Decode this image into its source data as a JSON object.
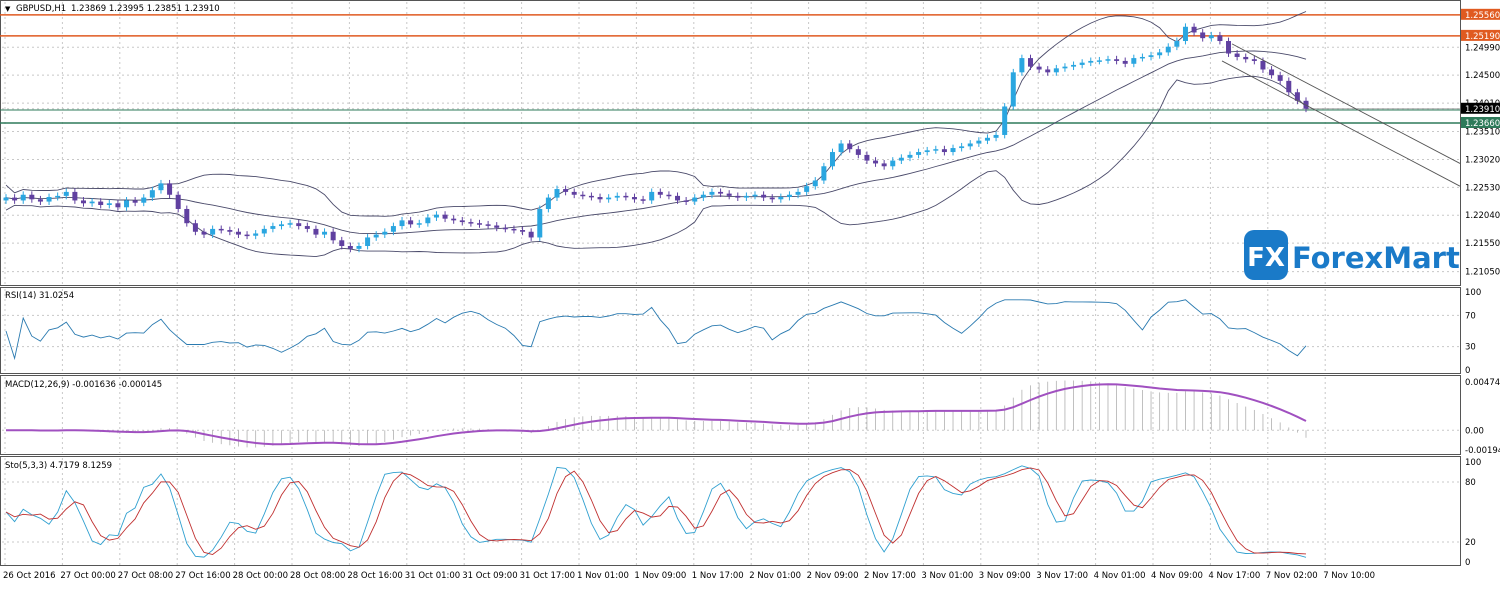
{
  "window": {
    "title": "GBPUSD,H1",
    "ohlc": "1.23869 1.23995 1.23851 1.23910"
  },
  "logo": {
    "text": "ForexMart",
    "mark": "FX"
  },
  "colors": {
    "bull": "#1e90ff",
    "bear": "#5a4aa0",
    "candle_up": "#2aa6e0",
    "candle_down": "#6040a0",
    "band": "#4a4a6a",
    "resistance": "#e05a20",
    "support": "#2e7a5a",
    "rsi": "#2a7ab0",
    "macd": "#a050c0",
    "sto_main": "#30a0d0",
    "sto_signal": "#c03030",
    "grid": "#c8c8c8"
  },
  "chart_data": [
    {
      "type": "candlestick",
      "pane": "price",
      "title": "GBPUSD,H1",
      "ylim": [
        1.2085,
        1.2575
      ],
      "y_ticks": [
        "1.25560",
        "1.25190",
        "1.24990",
        "1.24500",
        "1.24010",
        "1.23910",
        "1.23660",
        "1.23510",
        "1.23020",
        "1.22530",
        "1.22040",
        "1.21550",
        "1.21050"
      ],
      "levels": [
        {
          "name": "resistance-high",
          "value": 1.2556,
          "label": "1.25560"
        },
        {
          "name": "resistance-low",
          "value": 1.2519,
          "label": "1.25190"
        },
        {
          "name": "support",
          "value": 1.2366,
          "label": "1.23660"
        }
      ],
      "current_price": {
        "value": 1.2391,
        "label": "1.23910"
      },
      "closes": [
        1.2235,
        1.223,
        1.224,
        1.2232,
        1.2228,
        1.2236,
        1.2238,
        1.2245,
        1.223,
        1.2225,
        1.2228,
        1.2222,
        1.2225,
        1.2218,
        1.223,
        1.2226,
        1.2235,
        1.2248,
        1.226,
        1.224,
        1.2215,
        1.219,
        1.2175,
        1.217,
        1.218,
        1.2178,
        1.2175,
        1.217,
        1.2168,
        1.2172,
        1.218,
        1.2185,
        1.2188,
        1.219,
        1.2185,
        1.218,
        1.217,
        1.2175,
        1.216,
        1.215,
        1.2145,
        1.215,
        1.2165,
        1.217,
        1.2175,
        1.2185,
        1.2195,
        1.2188,
        1.219,
        1.22,
        1.2205,
        1.2198,
        1.2195,
        1.2192,
        1.219,
        1.2188,
        1.2186,
        1.2182,
        1.218,
        1.2178,
        1.2175,
        1.2165,
        1.2215,
        1.2235,
        1.225,
        1.2245,
        1.224,
        1.2238,
        1.2236,
        1.2232,
        1.2235,
        1.2238,
        1.2236,
        1.2232,
        1.223,
        1.2245,
        1.224,
        1.2238,
        1.223,
        1.2228,
        1.2235,
        1.224,
        1.2245,
        1.2242,
        1.2238,
        1.2235,
        1.2238,
        1.224,
        1.2235,
        1.2232,
        1.2236,
        1.224,
        1.2245,
        1.2255,
        1.2265,
        1.229,
        1.2315,
        1.233,
        1.232,
        1.231,
        1.23,
        1.2295,
        1.229,
        1.23,
        1.2305,
        1.231,
        1.2315,
        1.2318,
        1.232,
        1.2315,
        1.2322,
        1.2325,
        1.233,
        1.2335,
        1.234,
        1.2345,
        1.2395,
        1.2455,
        1.248,
        1.2465,
        1.246,
        1.2455,
        1.2462,
        1.2465,
        1.2468,
        1.2472,
        1.2475,
        1.2476,
        1.2478,
        1.2475,
        1.247,
        1.248,
        1.2482,
        1.2485,
        1.249,
        1.25,
        1.251,
        1.2535,
        1.2525,
        1.2515,
        1.252,
        1.251,
        1.2488,
        1.2482,
        1.2478,
        1.2475,
        1.246,
        1.245,
        1.244,
        1.242,
        1.2405,
        1.2391
      ]
    },
    {
      "type": "line",
      "pane": "rsi",
      "title": "RSI(14) 31.0254",
      "ylim": [
        0,
        100
      ],
      "y_ticks": [
        "100",
        "70",
        "30",
        "0"
      ]
    },
    {
      "type": "line",
      "pane": "macd",
      "title": "MACD(12,26,9) -0.001636 -0.000145",
      "y_ticks": [
        "0.004745",
        "0.00",
        "-0.00194"
      ]
    },
    {
      "type": "line",
      "pane": "stochastic",
      "title": "Sto(5,3,3) 4.7179 8.1259",
      "ylim": [
        0,
        100
      ],
      "y_ticks": [
        "100",
        "80",
        "20",
        "0"
      ]
    }
  ],
  "x_ticks": [
    "26 Oct 2016",
    "27 Oct 00:00",
    "27 Oct 08:00",
    "27 Oct 16:00",
    "28 Oct 00:00",
    "28 Oct 08:00",
    "28 Oct 16:00",
    "31 Oct 01:00",
    "31 Oct 09:00",
    "31 Oct 17:00",
    "1 Nov 01:00",
    "1 Nov 09:00",
    "1 Nov 17:00",
    "2 Nov 01:00",
    "2 Nov 09:00",
    "2 Nov 17:00",
    "3 Nov 01:00",
    "3 Nov 09:00",
    "3 Nov 17:00",
    "4 Nov 01:00",
    "4 Nov 09:00",
    "4 Nov 17:00",
    "7 Nov 02:00",
    "7 Nov 10:00"
  ]
}
